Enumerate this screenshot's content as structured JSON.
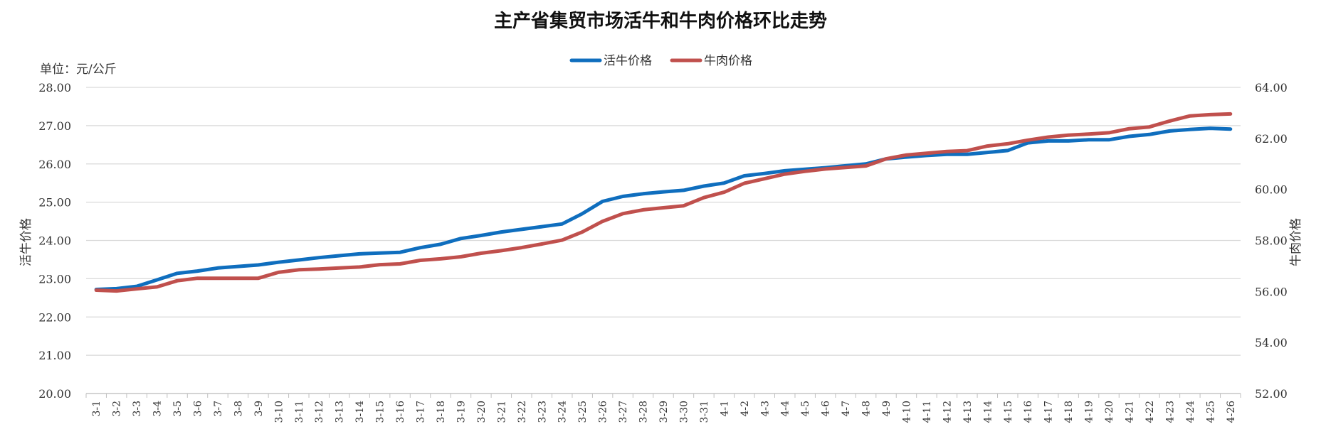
{
  "chart_data": {
    "type": "line",
    "title": "主产省集贸市场活牛和牛肉价格环比走势",
    "unit_label": "单位：元/公斤",
    "y_left_label": "活牛价格",
    "y_right_label": "牛肉价格",
    "y_left_range": [
      20,
      28
    ],
    "y_right_range": [
      52,
      64
    ],
    "y_left_ticks": [
      "20.00",
      "21.00",
      "22.00",
      "23.00",
      "24.00",
      "25.00",
      "26.00",
      "27.00",
      "28.00"
    ],
    "y_right_ticks": [
      "52.00",
      "54.00",
      "56.00",
      "58.00",
      "60.00",
      "62.00",
      "64.00"
    ],
    "grid": true,
    "legend_position": "top-center",
    "categories": [
      "3-1",
      "3-2",
      "3-3",
      "3-4",
      "3-5",
      "3-6",
      "3-7",
      "3-8",
      "3-9",
      "3-10",
      "3-11",
      "3-12",
      "3-13",
      "3-14",
      "3-15",
      "3-16",
      "3-17",
      "3-18",
      "3-19",
      "3-20",
      "3-21",
      "3-22",
      "3-23",
      "3-24",
      "3-25",
      "3-26",
      "3-27",
      "3-28",
      "3-29",
      "3-30",
      "3-31",
      "4-1",
      "4-2",
      "4-3",
      "4-4",
      "4-5",
      "4-6",
      "4-7",
      "4-8",
      "4-9",
      "4-10",
      "4-11",
      "4-12",
      "4-13",
      "4-14",
      "4-15",
      "4-16",
      "4-17",
      "4-18",
      "4-19",
      "4-20",
      "4-21",
      "4-22",
      "4-23",
      "4-24",
      "4-25",
      "4-26"
    ],
    "series": [
      {
        "name": "活牛价格",
        "axis": "left",
        "color": "#0F6EBE",
        "values": [
          22.72,
          22.74,
          22.8,
          22.97,
          23.14,
          23.2,
          23.28,
          23.32,
          23.36,
          23.43,
          23.49,
          23.55,
          23.6,
          23.65,
          23.67,
          23.69,
          23.81,
          23.9,
          24.05,
          24.13,
          24.22,
          24.29,
          24.36,
          24.43,
          24.7,
          25.02,
          25.15,
          25.22,
          25.27,
          25.31,
          25.42,
          25.5,
          25.69,
          25.75,
          25.82,
          25.86,
          25.9,
          25.95,
          26.0,
          26.13,
          26.18,
          26.22,
          26.25,
          26.25,
          26.3,
          26.35,
          26.55,
          26.6,
          26.6,
          26.63,
          26.63,
          26.72,
          26.77,
          26.86,
          26.9,
          26.93,
          26.91
        ]
      },
      {
        "name": "牛肉价格",
        "axis": "right",
        "color": "#C0504D",
        "values": [
          56.05,
          56.02,
          56.1,
          56.18,
          56.42,
          56.52,
          56.52,
          56.52,
          56.52,
          56.75,
          56.85,
          56.88,
          56.92,
          56.96,
          57.05,
          57.08,
          57.22,
          57.28,
          57.36,
          57.5,
          57.6,
          57.72,
          57.86,
          58.01,
          58.33,
          58.75,
          59.05,
          59.2,
          59.28,
          59.36,
          59.68,
          59.89,
          60.24,
          60.42,
          60.6,
          60.71,
          60.8,
          60.86,
          60.92,
          61.2,
          61.35,
          61.42,
          61.49,
          61.52,
          61.7,
          61.79,
          61.93,
          62.05,
          62.13,
          62.17,
          62.22,
          62.38,
          62.45,
          62.68,
          62.88,
          62.93,
          62.96
        ]
      }
    ]
  }
}
